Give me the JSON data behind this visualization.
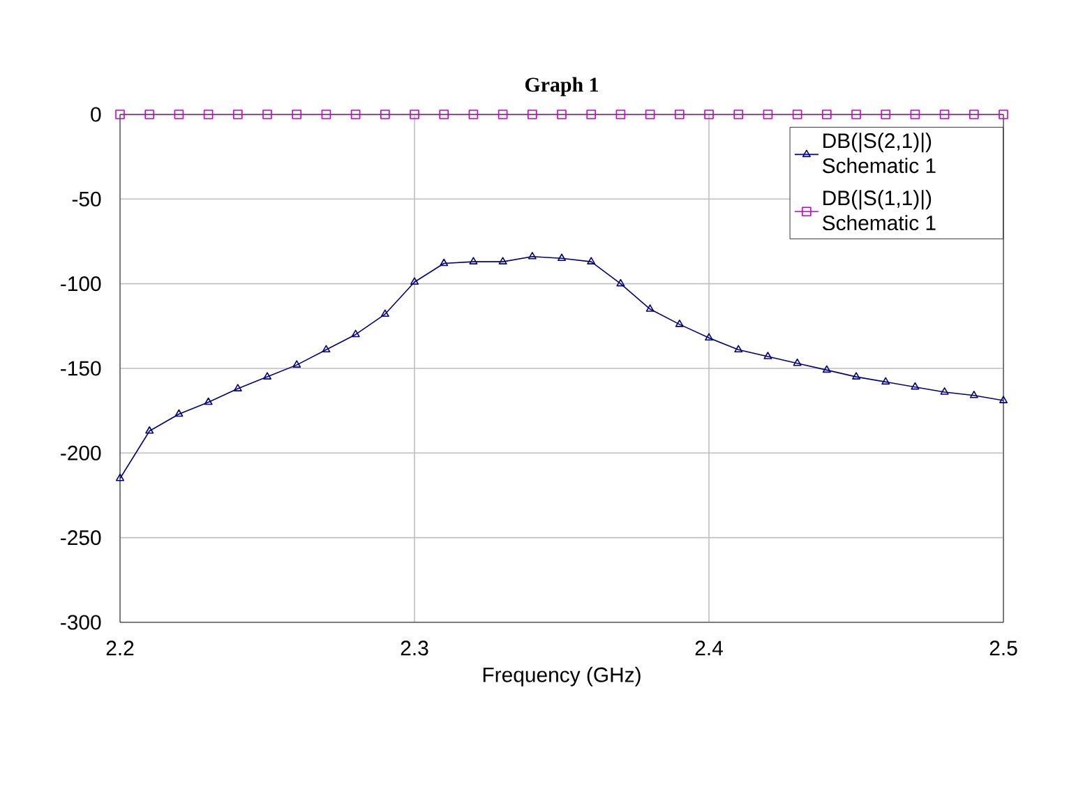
{
  "chart_data": {
    "type": "line",
    "title": "Graph 1",
    "xlabel": "Frequency (GHz)",
    "xlim": [
      2.2,
      2.5
    ],
    "ylim": [
      -300,
      0
    ],
    "xticks": [
      2.2,
      2.3,
      2.4,
      2.5
    ],
    "yticks": [
      -300,
      -250,
      -200,
      -150,
      -100,
      -50,
      0
    ],
    "grid": true,
    "legend": "top right",
    "series": [
      {
        "name": "DB(|S(2,1)|) Schematic 1",
        "color": "#000080",
        "marker": "triangle",
        "x": [
          2.2,
          2.21,
          2.22,
          2.23,
          2.24,
          2.25,
          2.26,
          2.27,
          2.28,
          2.29,
          2.3,
          2.31,
          2.32,
          2.33,
          2.34,
          2.35,
          2.36,
          2.37,
          2.38,
          2.39,
          2.4,
          2.41,
          2.42,
          2.43,
          2.44,
          2.45,
          2.46,
          2.47,
          2.48,
          2.49,
          2.5
        ],
        "values": [
          -215,
          -187,
          -177,
          -170,
          -162,
          -155,
          -148,
          -139,
          -130,
          -118,
          -99,
          -88,
          -87,
          -87,
          -84,
          -85,
          -87,
          -100,
          -115,
          -124,
          -132,
          -139,
          -143,
          -147,
          -151,
          -155,
          -158,
          -161,
          -164,
          -166,
          -169
        ]
      },
      {
        "name": "DB(|S(1,1)|) Schematic 1",
        "color": "#cc00cc",
        "marker": "square",
        "x": [
          2.2,
          2.21,
          2.22,
          2.23,
          2.24,
          2.25,
          2.26,
          2.27,
          2.28,
          2.29,
          2.3,
          2.31,
          2.32,
          2.33,
          2.34,
          2.35,
          2.36,
          2.37,
          2.38,
          2.39,
          2.4,
          2.41,
          2.42,
          2.43,
          2.44,
          2.45,
          2.46,
          2.47,
          2.48,
          2.49,
          2.5
        ],
        "values": [
          0,
          0,
          0,
          0,
          0,
          0,
          0,
          0,
          0,
          0,
          0,
          0,
          0,
          0,
          0,
          0,
          0,
          0,
          0,
          0,
          0,
          0,
          0,
          0,
          0,
          0,
          0,
          0,
          0,
          0,
          0
        ]
      }
    ]
  }
}
